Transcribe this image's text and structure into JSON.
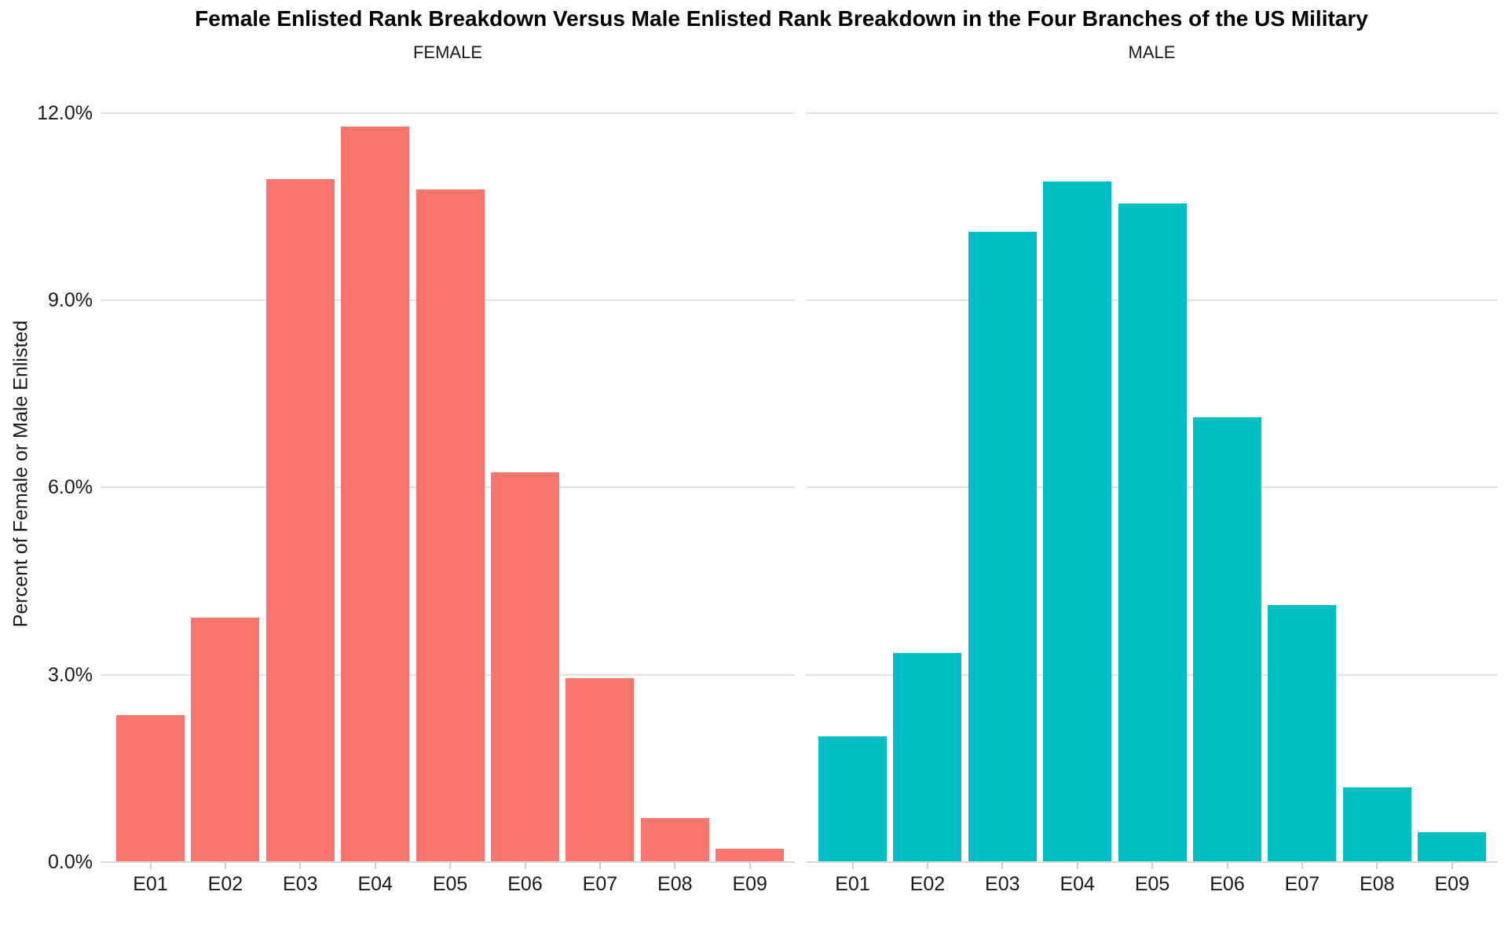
{
  "chart": {
    "title": "Female Enlisted Rank Breakdown Versus Male Enlisted Rank Breakdown in the Four Branches of the US Military",
    "ylabel": "Percent of Female or Male Enlisted"
  },
  "chart_data": {
    "type": "bar",
    "title": "Female Enlisted Rank Breakdown Versus Male Enlisted Rank Breakdown in the Four Branches of the US Military",
    "xlabel": "",
    "ylabel": "Percent of Female or Male Enlisted",
    "facets": [
      "FEMALE",
      "MALE"
    ],
    "categories": [
      "E01",
      "E02",
      "E03",
      "E04",
      "E05",
      "E06",
      "E07",
      "E08",
      "E09"
    ],
    "series": [
      {
        "name": "FEMALE",
        "color": "#F8766D",
        "values": [
          2.35,
          3.91,
          10.94,
          11.78,
          10.77,
          6.24,
          2.95,
          0.71,
          0.22
        ]
      },
      {
        "name": "MALE",
        "color": "#00BFC4",
        "values": [
          2.02,
          3.35,
          10.1,
          10.9,
          10.55,
          7.12,
          4.12,
          1.19,
          0.48
        ]
      }
    ],
    "ylim": [
      0,
      12.4
    ],
    "ytick_values": [
      0,
      3,
      6,
      9,
      12
    ],
    "ytick_labels": [
      "0.0%",
      "3.0%",
      "6.0%",
      "9.0%",
      "12.0%"
    ],
    "grid": "horizontal-major-only",
    "legend_position": "none",
    "background": "#ffffff",
    "gridline_color": "#e2e2e2"
  }
}
